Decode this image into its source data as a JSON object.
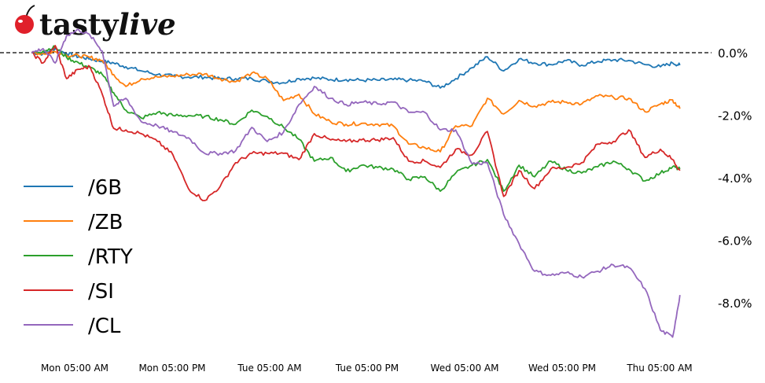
{
  "logo": {
    "text_bold": "tasty",
    "text_italic": "live"
  },
  "chart_data": {
    "type": "line",
    "title": "",
    "xlabel": "",
    "ylabel": "",
    "x_unit": "hours since Mon 00:00",
    "x": [
      -0.3,
      1.1,
      2.6,
      4.0,
      5.5,
      6.9,
      8.4,
      9.8,
      11.3,
      13.2,
      15.2,
      17.1,
      19.0,
      21.0,
      22.9,
      24.8,
      26.8,
      28.7,
      30.7,
      32.6,
      34.5,
      36.5,
      38.4,
      40.3,
      42.3,
      44.2,
      46.1,
      48.1,
      50.0,
      51.9,
      53.9,
      55.8,
      57.8,
      59.7,
      61.6,
      63.6,
      65.5,
      67.4,
      69.4,
      71.3,
      73.2,
      75.2,
      77.1,
      78.6,
      79.5
    ],
    "xticks": [
      {
        "value": 5,
        "label": "Mon 05:00 AM"
      },
      {
        "value": 17,
        "label": "Mon 05:00 PM"
      },
      {
        "value": 29,
        "label": "Tue 05:00 AM"
      },
      {
        "value": 41,
        "label": "Tue 05:00 PM"
      },
      {
        "value": 53,
        "label": "Wed 05:00 AM"
      },
      {
        "value": 65,
        "label": "Wed 05:00 PM"
      },
      {
        "value": 77,
        "label": "Thu 05:00 AM"
      }
    ],
    "yticks": [
      {
        "value": 0,
        "label": "0.0%"
      },
      {
        "value": -2,
        "label": "-2.0%"
      },
      {
        "value": -4,
        "label": "-4.0%"
      },
      {
        "value": -6,
        "label": "-6.0%"
      },
      {
        "value": -8,
        "label": "-8.0%"
      }
    ],
    "ylim": [
      -9.5,
      1.7
    ],
    "xlim": [
      -4.0,
      84.0
    ],
    "reference_line": {
      "value": 0,
      "style": "dashed"
    },
    "grid": false,
    "legend_position": "left",
    "series": [
      {
        "name": "/6B",
        "color": "#1f77b4",
        "values": [
          0,
          -0.03,
          0.13,
          -0.03,
          -0.13,
          -0.2,
          -0.28,
          -0.33,
          -0.45,
          -0.58,
          -0.7,
          -0.75,
          -0.78,
          -0.78,
          -0.83,
          -0.83,
          -0.83,
          -0.91,
          -0.96,
          -0.83,
          -0.81,
          -0.86,
          -0.86,
          -0.88,
          -0.88,
          -0.86,
          -0.88,
          -0.91,
          -1.13,
          -0.83,
          -0.48,
          -0.13,
          -0.58,
          -0.2,
          -0.33,
          -0.38,
          -0.25,
          -0.4,
          -0.28,
          -0.23,
          -0.25,
          -0.38,
          -0.45,
          -0.33,
          -0.4
        ]
      },
      {
        "name": "/ZB",
        "color": "#ff7f0e",
        "values": [
          0,
          -0.03,
          0.03,
          -0.08,
          -0.1,
          -0.15,
          -0.25,
          -0.7,
          -1.08,
          -0.83,
          -0.78,
          -0.75,
          -0.7,
          -0.68,
          -0.83,
          -0.93,
          -0.65,
          -0.83,
          -1.53,
          -1.33,
          -1.96,
          -2.21,
          -2.29,
          -2.26,
          -2.29,
          -2.34,
          -2.92,
          -3.04,
          -3.17,
          -2.34,
          -2.34,
          -1.46,
          -1.96,
          -1.53,
          -1.71,
          -1.58,
          -1.58,
          -1.64,
          -1.38,
          -1.43,
          -1.46,
          -1.89,
          -1.64,
          -1.51,
          -1.79
        ]
      },
      {
        "name": "/RTY",
        "color": "#2ca02c",
        "values": [
          0,
          0.05,
          0.18,
          -0.15,
          -0.33,
          -0.48,
          -0.7,
          -1.28,
          -1.84,
          -2.09,
          -1.91,
          -2.01,
          -2.01,
          -2.04,
          -2.14,
          -2.29,
          -1.84,
          -2.04,
          -2.39,
          -2.77,
          -3.47,
          -3.35,
          -3.8,
          -3.6,
          -3.67,
          -3.72,
          -4.05,
          -3.97,
          -4.43,
          -3.85,
          -3.6,
          -3.42,
          -4.43,
          -3.6,
          -3.97,
          -3.47,
          -3.75,
          -3.85,
          -3.65,
          -3.47,
          -3.72,
          -4.1,
          -3.85,
          -3.65,
          -3.72
        ]
      },
      {
        "name": "/SI",
        "color": "#d62728",
        "values": [
          0,
          -0.33,
          0.23,
          -0.83,
          -0.53,
          -0.45,
          -1.33,
          -2.42,
          -2.47,
          -2.59,
          -2.84,
          -3.27,
          -4.35,
          -4.73,
          -4.28,
          -3.52,
          -3.22,
          -3.22,
          -3.22,
          -3.42,
          -2.59,
          -2.79,
          -2.84,
          -2.79,
          -2.79,
          -2.72,
          -3.47,
          -3.47,
          -3.67,
          -3.09,
          -3.27,
          -2.52,
          -4.6,
          -3.77,
          -4.35,
          -3.72,
          -3.67,
          -3.52,
          -2.92,
          -2.84,
          -2.47,
          -3.35,
          -3.09,
          -3.42,
          -3.77
        ]
      },
      {
        "name": "/CL",
        "color": "#9467bd",
        "values": [
          0,
          0.13,
          -0.33,
          0.55,
          0.73,
          0.55,
          0.05,
          -1.71,
          -1.46,
          -2.21,
          -2.34,
          -2.54,
          -2.72,
          -3.22,
          -3.22,
          -3.14,
          -2.39,
          -2.84,
          -2.54,
          -1.66,
          -1.08,
          -1.46,
          -1.66,
          -1.58,
          -1.64,
          -1.58,
          -1.91,
          -1.91,
          -2.47,
          -2.47,
          -3.55,
          -3.52,
          -5.18,
          -6.11,
          -6.99,
          -7.12,
          -7.04,
          -7.17,
          -6.99,
          -6.79,
          -6.87,
          -7.55,
          -8.88,
          -9.1,
          -7.75
        ]
      }
    ]
  }
}
